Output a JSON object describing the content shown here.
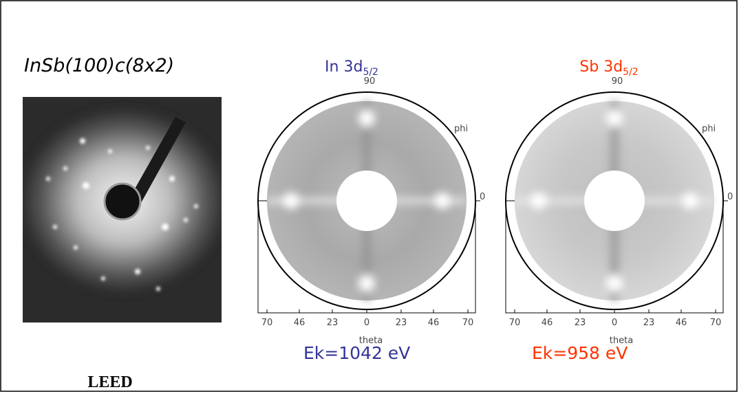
{
  "sample": {
    "label": "InSb(100)c(8x2)",
    "caption": "LEED"
  },
  "panels": [
    {
      "element": "In 3d",
      "subscript": "5/2",
      "color": "#333399",
      "top_label": "90",
      "phi_label": "phi",
      "zero_label": "0",
      "theta_ticks": [
        "70",
        "46",
        "23",
        "0",
        "23",
        "46",
        "70"
      ],
      "theta_label": "theta",
      "energy": "Ek=1042 eV"
    },
    {
      "element": "Sb 3d",
      "subscript": "5/2",
      "color": "#ff3300",
      "top_label": "90",
      "phi_label": "phi",
      "zero_label": "0",
      "theta_ticks": [
        "70",
        "46",
        "23",
        "0",
        "23",
        "46",
        "70"
      ],
      "theta_label": "theta",
      "energy": "Ek=958 eV"
    }
  ]
}
